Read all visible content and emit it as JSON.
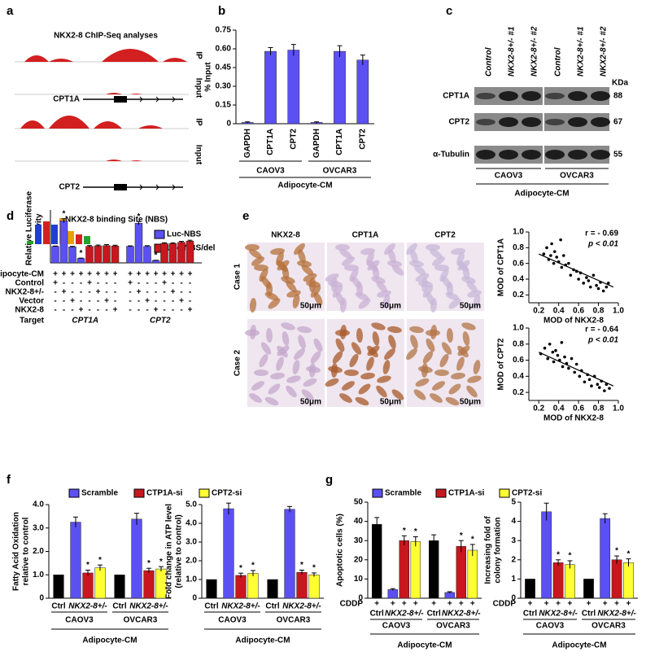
{
  "panel_labels": [
    "a",
    "b",
    "c",
    "d",
    "e",
    "f",
    "g"
  ],
  "chip_seq": {
    "title": "NKX2-8 ChIP-Seq analyses",
    "tracks": [
      "IP",
      "Input",
      "IP",
      "Input"
    ],
    "genes": [
      "CPT1A",
      "CPT2"
    ]
  },
  "western": {
    "lanes": [
      "Control",
      "NKX2-8+/- #1",
      "NKX2-8+/- #2",
      "Control",
      "NKX2-8+/- #1",
      "NKX2-8+/- #2"
    ],
    "unit": "KDa",
    "rows": [
      {
        "protein": "CPT1A",
        "kda": 88
      },
      {
        "protein": "CPT2",
        "kda": 67
      },
      {
        "protein": "α-Tubulin",
        "kda": 55
      }
    ],
    "groups": [
      "CAOV3",
      "OVCAR3"
    ],
    "condition": "Adipocyte-CM"
  },
  "ihc": {
    "stains": [
      "NKX2-8",
      "CPT1A",
      "CPT2"
    ],
    "cases": [
      "Case 1",
      "Case 2"
    ],
    "scale_bar": "50μm"
  },
  "chart_data": [
    {
      "type": "bar",
      "y_label": "% Input",
      "categories": [
        "GAPDH",
        "CPT1A",
        "CPT2",
        "GAPDH",
        "CPT1A",
        "CPT2"
      ],
      "groups": [
        "CAOV3",
        "OVCAR3"
      ],
      "x_label": "Adipocyte-CM",
      "values": [
        0.01,
        0.58,
        0.59,
        0.01,
        0.58,
        0.51
      ],
      "errors": [
        0.005,
        0.03,
        0.045,
        0.005,
        0.045,
        0.04
      ],
      "color": "#5b50f2",
      "ylim": [
        0,
        0.75
      ],
      "yticks": [
        0,
        0.15,
        {
          "value": 0.3,
          "label": "0.30"
        },
        0.45,
        {
          "value": 0.6,
          "label": "0.60"
        },
        0.75
      ]
    },
    {
      "type": "luciferase",
      "title": "NKX2-8 binding Site (NBS)",
      "y_label": [
        "Relative Luciferase",
        "Activity"
      ],
      "categories": [
        null,
        null,
        null,
        null,
        null,
        null,
        null,
        null,
        null,
        null,
        null,
        null,
        null,
        null,
        null,
        null
      ],
      "series": [
        {
          "name": "Luc-NBS",
          "color": "#5b50f2",
          "values": [
            1.0,
            2.55,
            0.97,
            0.27,
            null,
            null,
            null,
            null,
            1.0,
            2.4,
            1.0,
            0.15,
            null,
            null,
            null,
            null
          ],
          "errors": [
            0.02,
            0.12,
            0.03,
            0.02,
            null,
            null,
            null,
            null,
            0.03,
            0.1,
            0.04,
            0.01,
            null,
            null,
            null,
            null
          ],
          "significance": [
            null,
            "*",
            null,
            "*",
            null,
            null,
            null,
            null,
            null,
            "*",
            null,
            "*",
            null,
            null,
            null,
            null
          ]
        },
        {
          "name": "Luc-NBS/del",
          "color": "#c8171e",
          "values": [
            null,
            null,
            null,
            null,
            1.0,
            1.03,
            1.05,
            1.02,
            null,
            null,
            null,
            null,
            1.18,
            1.17,
            1.25,
            1.32
          ],
          "errors": [
            null,
            null,
            null,
            null,
            0.05,
            0.05,
            0.06,
            0.05,
            null,
            null,
            null,
            null,
            0.04,
            0.04,
            0.05,
            0.05
          ]
        }
      ],
      "ylim": [
        0,
        3.2
      ],
      "conditions": [
        {
          "label": "Adipocyte-CM",
          "marks": [
            "+",
            "+",
            "+",
            "+",
            "+",
            "+",
            "+",
            "+",
            "+",
            "+",
            "+",
            "+",
            "+",
            "+",
            "+",
            "+"
          ]
        },
        {
          "label": "Control",
          "marks": [
            "+",
            "-",
            "-",
            "-",
            "+",
            "-",
            "-",
            "-",
            "+",
            "-",
            "-",
            "-",
            "+",
            "-",
            "-",
            "-"
          ]
        },
        {
          "label": "NKX2-8+/-",
          "marks": [
            "-",
            "+",
            "-",
            "-",
            "-",
            "+",
            "-",
            "-",
            "-",
            "+",
            "-",
            "-",
            "-",
            "+",
            "-",
            "-"
          ]
        },
        {
          "label": "Vector",
          "marks": [
            "-",
            "-",
            "+",
            "-",
            "-",
            "-",
            "+",
            "-",
            "-",
            "-",
            "+",
            "-",
            "-",
            "-",
            "+",
            "-"
          ]
        },
        {
          "label": "NKX2-8",
          "marks": [
            "-",
            "-",
            "-",
            "+",
            "-",
            "-",
            "-",
            "+",
            "-",
            "-",
            "-",
            "+",
            "-",
            "-",
            "-",
            "+"
          ]
        }
      ],
      "target_label": "Target",
      "targets": [
        "CPT1A",
        "CPT2"
      ]
    },
    {
      "type": "scatter",
      "x_label": "MOD of NKX2-8",
      "y_label": "MOD of CPT1A",
      "annotations": [
        "r = - 0.69",
        "p < 0.01"
      ],
      "x": [
        0.25,
        0.28,
        0.3,
        0.32,
        0.33,
        0.35,
        0.36,
        0.38,
        0.4,
        0.42,
        0.43,
        0.45,
        0.47,
        0.5,
        0.52,
        0.55,
        0.58,
        0.6,
        0.62,
        0.65,
        0.68,
        0.7,
        0.72,
        0.75,
        0.78,
        0.8,
        0.82,
        0.85,
        0.88,
        0.9
      ],
      "y": [
        0.72,
        0.8,
        0.65,
        0.7,
        0.85,
        0.6,
        0.75,
        0.68,
        0.62,
        0.9,
        0.55,
        0.7,
        0.58,
        0.6,
        0.45,
        0.52,
        0.5,
        0.4,
        0.48,
        0.35,
        0.42,
        0.38,
        0.3,
        0.45,
        0.32,
        0.28,
        0.36,
        0.25,
        0.3,
        0.35
      ],
      "fit_x": [
        0.2,
        0.95
      ],
      "fit_y": [
        0.72,
        0.3
      ],
      "color": "#000000",
      "xlim": [
        0.1,
        1.0
      ],
      "ylim": [
        0.1,
        1.0
      ],
      "xticks": [
        0.2,
        0.4,
        0.6,
        0.8,
        {
          "value": 1.0,
          "label": "1.0"
        }
      ],
      "yticks": [
        0.2,
        0.4,
        0.6,
        0.8,
        {
          "value": 1.0,
          "label": "1.0"
        }
      ]
    },
    {
      "type": "scatter",
      "x_label": "MOD of NKX2-8",
      "y_label": "MOD of CPT2",
      "annotations": [
        "r = - 0.64",
        "p < 0.01"
      ],
      "x": [
        0.22,
        0.26,
        0.29,
        0.31,
        0.34,
        0.35,
        0.37,
        0.39,
        0.41,
        0.43,
        0.44,
        0.46,
        0.48,
        0.5,
        0.53,
        0.56,
        0.58,
        0.61,
        0.63,
        0.66,
        0.69,
        0.71,
        0.73,
        0.76,
        0.79,
        0.81,
        0.83,
        0.86,
        0.88,
        0.91
      ],
      "y": [
        0.68,
        0.75,
        0.62,
        0.8,
        0.7,
        0.58,
        0.72,
        0.66,
        0.6,
        0.82,
        0.52,
        0.64,
        0.56,
        0.5,
        0.62,
        0.45,
        0.55,
        0.4,
        0.47,
        0.33,
        0.42,
        0.36,
        0.28,
        0.4,
        0.3,
        0.26,
        0.34,
        0.22,
        0.3,
        0.25
      ],
      "fit_x": [
        0.2,
        0.95
      ],
      "fit_y": [
        0.7,
        0.28
      ],
      "color": "#000000",
      "xlim": [
        0.1,
        1.0
      ],
      "ylim": [
        0.1,
        1.0
      ],
      "xticks": [
        0.2,
        0.4,
        0.6,
        0.8,
        {
          "value": 1.0,
          "label": "1.0"
        }
      ],
      "yticks": [
        0.2,
        0.4,
        0.6,
        0.8,
        {
          "value": 1.0,
          "label": "1.0"
        }
      ]
    },
    {
      "type": "grouped_bar",
      "series": [
        {
          "name": "Scramble",
          "color": "#5b50f2"
        },
        {
          "name": "CTP1A-si",
          "color": "#c8171e"
        },
        {
          "name": "CPT2-si",
          "color": "#ffff33"
        }
      ],
      "control_color": "#000000",
      "groups": [
        "CAOV3",
        "OVCAR3"
      ],
      "subgroups": [
        "Ctrl",
        "NKX2-8+/-"
      ],
      "x_label": "Adipocyte-CM",
      "panels": [
        {
          "y_label": [
            "Fatty Acid Oxidation",
            "relative to control"
          ],
          "ylim": [
            0,
            4
          ],
          "yticks": [
            0,
            {
              "value": 1,
              "label": "1.0"
            },
            {
              "value": 2,
              "label": "2.0"
            },
            {
              "value": 3,
              "label": "3.0"
            },
            {
              "value": 4,
              "label": "4.0"
            }
          ],
          "control": {
            "values": [
              1.0,
              1.0
            ],
            "errors": [
              0,
              0
            ]
          },
          "values": [
            [
              3.25,
              3.38
            ],
            [
              1.08,
              1.18
            ],
            [
              1.3,
              1.25
            ]
          ],
          "errors": [
            [
              0.22,
              0.25
            ],
            [
              0.12,
              0.1
            ],
            [
              0.12,
              0.1
            ]
          ],
          "significance": [
            [
              null,
              null
            ],
            [
              "*",
              "*"
            ],
            [
              "*",
              "*"
            ]
          ]
        },
        {
          "y_label": [
            "Fold change in ATP level",
            "(relative to control)"
          ],
          "ylim": [
            0,
            5
          ],
          "yticks": [
            0,
            {
              "value": 1,
              "label": "1.0"
            },
            {
              "value": 2,
              "label": "2.0"
            },
            {
              "value": 3,
              "label": "3.0"
            },
            {
              "value": 4,
              "label": "4.0"
            },
            {
              "value": 5,
              "label": "5.0"
            }
          ],
          "control": {
            "values": [
              1.0,
              1.0
            ],
            "errors": [
              0,
              0
            ]
          },
          "values": [
            [
              4.78,
              4.75
            ],
            [
              1.22,
              1.38
            ],
            [
              1.33,
              1.25
            ]
          ],
          "errors": [
            [
              0.3,
              0.15
            ],
            [
              0.12,
              0.12
            ],
            [
              0.15,
              0.1
            ]
          ],
          "significance": [
            [
              null,
              null
            ],
            [
              "*",
              "*"
            ],
            [
              "*",
              "*"
            ]
          ]
        }
      ]
    },
    {
      "type": "grouped_bar",
      "series": [
        {
          "name": "Scramble",
          "color": "#5b50f2"
        },
        {
          "name": "CTP1A-si",
          "color": "#c8171e"
        },
        {
          "name": "CPT2-si",
          "color": "#ffff33"
        }
      ],
      "control_color": "#000000",
      "groups": [
        "CAOV3",
        "OVCAR3"
      ],
      "subgroups": [
        "Ctrl",
        "NKX2-8+/-"
      ],
      "x_label": "Adipocyte-CM",
      "treatment_label": "CDDP",
      "treatment_marks": [
        "+",
        "+",
        "+",
        "+"
      ],
      "panels": [
        {
          "y_label": [
            "Apoptotic cells (%)"
          ],
          "ylim": [
            0,
            50
          ],
          "yticks": [
            0,
            10,
            20,
            30,
            40,
            50
          ],
          "control": {
            "values": [
              38.5,
              30
            ],
            "errors": [
              3.5,
              3
            ]
          },
          "values": [
            [
              4.5,
              3
            ],
            [
              30,
              27
            ],
            [
              29.5,
              25
            ]
          ],
          "errors": [
            [
              0.5,
              0.4
            ],
            [
              2.5,
              3
            ],
            [
              2.5,
              3
            ]
          ],
          "significance": [
            [
              null,
              null
            ],
            [
              "*",
              "*"
            ],
            [
              "*",
              "*"
            ]
          ]
        },
        {
          "y_label": [
            "Increasing fold of",
            "colony formation"
          ],
          "ylim": [
            0,
            5
          ],
          "yticks": [
            0,
            1,
            2,
            3,
            4,
            5
          ],
          "control": {
            "values": [
              1,
              1
            ],
            "errors": [
              0,
              0
            ]
          },
          "values": [
            [
              4.5,
              4.15
            ],
            [
              1.85,
              2.0
            ],
            [
              1.75,
              1.85
            ]
          ],
          "errors": [
            [
              0.45,
              0.25
            ],
            [
              0.15,
              0.2
            ],
            [
              0.2,
              0.2
            ]
          ],
          "significance": [
            [
              null,
              null
            ],
            [
              "*",
              "*"
            ],
            [
              "*",
              "*"
            ]
          ]
        }
      ]
    }
  ]
}
